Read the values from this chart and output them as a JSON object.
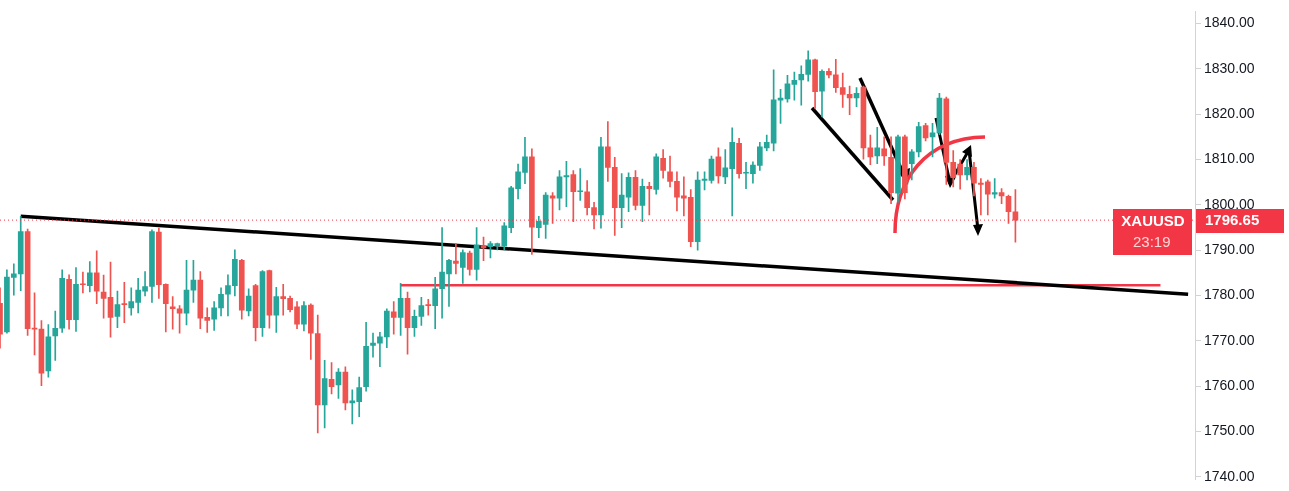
{
  "chart_data": {
    "type": "candlestick",
    "categories": [
      null,
      null,
      null,
      null,
      null,
      null,
      null,
      null,
      null,
      null,
      null,
      null,
      null,
      null,
      null,
      null,
      null,
      null,
      null,
      null,
      null,
      null,
      null,
      null,
      null,
      null,
      null,
      null,
      null,
      null,
      null,
      null,
      null,
      null,
      null,
      null,
      null,
      null,
      null,
      null,
      null,
      null,
      null,
      null,
      null,
      null,
      null,
      null,
      null,
      null,
      null,
      null,
      null,
      null,
      null,
      null,
      null,
      null,
      null,
      null,
      null,
      null,
      null,
      null,
      null,
      null,
      null,
      null,
      null,
      null,
      null,
      null,
      null,
      null,
      null,
      null,
      null,
      null,
      null,
      null,
      null,
      null,
      null,
      null,
      null,
      null,
      null,
      null,
      null,
      null,
      null,
      null,
      null,
      null,
      null,
      null,
      null,
      null,
      null,
      null,
      null,
      null,
      null,
      null,
      null,
      null,
      null,
      null,
      null,
      null,
      null,
      null,
      null,
      null,
      null,
      null,
      null,
      null,
      null,
      null,
      null,
      null,
      null,
      null,
      null,
      null,
      null,
      null,
      null,
      null,
      null,
      null,
      null,
      null,
      null,
      null,
      null,
      null,
      null,
      null,
      null,
      null,
      null,
      null,
      null,
      null,
      null,
      null,
      null,
      null,
      null,
      null,
      null,
      null,
      null,
      null,
      null,
      null,
      null,
      null,
      null,
      null,
      null,
      null,
      null,
      null,
      null,
      null,
      null,
      null,
      null,
      null,
      null,
      null
    ],
    "ohlc": [
      [
        1778.3,
        1781.7,
        1768.4,
        1771.5
      ],
      [
        1772.0,
        1785.7,
        1771.7,
        1784.1
      ],
      [
        1784.0,
        1787.0,
        1780.1,
        1784.8
      ],
      [
        1784.8,
        1797.5,
        1781.1,
        1794.1
      ],
      [
        1794.1,
        1794.7,
        1771.2,
        1772.7
      ],
      [
        1772.7,
        1780.6,
        1766.9,
        1772.6
      ],
      [
        1772.6,
        1774.5,
        1760.1,
        1762.9
      ],
      [
        1763.4,
        1773.6,
        1762.0,
        1770.9
      ],
      [
        1771.1,
        1776.6,
        1765.7,
        1772.8
      ],
      [
        1772.8,
        1785.7,
        1771.9,
        1783.8
      ],
      [
        1783.6,
        1784.6,
        1772.6,
        1774.7
      ],
      [
        1774.7,
        1786.2,
        1772.1,
        1782.5
      ],
      [
        1782.5,
        1785.2,
        1780.6,
        1782.4
      ],
      [
        1782.2,
        1787.5,
        1780.8,
        1785.0
      ],
      [
        1785.0,
        1789.9,
        1778.2,
        1781.0
      ],
      [
        1780.8,
        1784.5,
        1775.0,
        1779.4
      ],
      [
        1779.6,
        1787.4,
        1770.8,
        1775.2
      ],
      [
        1775.4,
        1781.0,
        1772.9,
        1778.0
      ],
      [
        1778.1,
        1782.9,
        1774.0,
        1778.0
      ],
      [
        1777.3,
        1781.7,
        1775.7,
        1778.7
      ],
      [
        1778.5,
        1783.8,
        1776.2,
        1781.2
      ],
      [
        1781.0,
        1785.3,
        1779.9,
        1782.0
      ],
      [
        1782.0,
        1794.5,
        1778.5,
        1794.1
      ],
      [
        1794.0,
        1794.9,
        1779.4,
        1782.4
      ],
      [
        1782.5,
        1782.6,
        1772.0,
        1778.2
      ],
      [
        1777.5,
        1779.8,
        1772.6,
        1777.1
      ],
      [
        1777.1,
        1777.8,
        1771.7,
        1776.1
      ],
      [
        1776.1,
        1787.8,
        1773.5,
        1781.2
      ],
      [
        1781.2,
        1787.8,
        1778.5,
        1783.4
      ],
      [
        1783.4,
        1785.3,
        1772.7,
        1775.0
      ],
      [
        1775.2,
        1777.3,
        1771.9,
        1774.5
      ],
      [
        1774.8,
        1778.7,
        1772.3,
        1777.3
      ],
      [
        1777.3,
        1781.7,
        1775.5,
        1780.3
      ],
      [
        1780.3,
        1784.6,
        1775.5,
        1782.2
      ],
      [
        1782.2,
        1790.1,
        1779.9,
        1788.0
      ],
      [
        1787.8,
        1788.0,
        1774.8,
        1776.8
      ],
      [
        1776.6,
        1781.5,
        1775.5,
        1779.9
      ],
      [
        1782.2,
        1782.5,
        1770.0,
        1772.9
      ],
      [
        1772.9,
        1785.5,
        1771.0,
        1785.3
      ],
      [
        1785.5,
        1785.6,
        1772.8,
        1775.7
      ],
      [
        1775.7,
        1781.8,
        1771.9,
        1779.8
      ],
      [
        1779.8,
        1782.5,
        1775.7,
        1779.3
      ],
      [
        1779.4,
        1779.9,
        1776.4,
        1776.9
      ],
      [
        1777.5,
        1778.7,
        1772.7,
        1773.7
      ],
      [
        1773.7,
        1778.7,
        1772.2,
        1777.8
      ],
      [
        1777.9,
        1778.2,
        1765.9,
        1771.7
      ],
      [
        1771.6,
        1775.7,
        1749.7,
        1755.9
      ],
      [
        1755.9,
        1765.7,
        1750.8,
        1761.7
      ],
      [
        1761.5,
        1765.2,
        1758.3,
        1759.9
      ],
      [
        1760.3,
        1763.9,
        1757.3,
        1763.1
      ],
      [
        1763.1,
        1764.3,
        1754.8,
        1756.3
      ],
      [
        1756.3,
        1759.2,
        1751.7,
        1756.8
      ],
      [
        1756.6,
        1762.0,
        1753.3,
        1759.7
      ],
      [
        1759.9,
        1774.1,
        1758.9,
        1768.8
      ],
      [
        1769.0,
        1771.7,
        1766.4,
        1769.5
      ],
      [
        1769.5,
        1771.9,
        1764.3,
        1770.9
      ],
      [
        1770.9,
        1777.1,
        1768.5,
        1776.6
      ],
      [
        1776.4,
        1778.7,
        1771.5,
        1775.2
      ],
      [
        1775.2,
        1782.7,
        1771.2,
        1779.4
      ],
      [
        1779.4,
        1780.8,
        1767.1,
        1772.9
      ],
      [
        1772.9,
        1776.8,
        1771.0,
        1775.4
      ],
      [
        1775.4,
        1779.6,
        1773.4,
        1777.8
      ],
      [
        1778.0,
        1779.2,
        1775.7,
        1777.8
      ],
      [
        1777.8,
        1784.0,
        1772.7,
        1781.5
      ],
      [
        1781.5,
        1795.0,
        1775.0,
        1785.2
      ],
      [
        1784.8,
        1788.0,
        1777.6,
        1787.8
      ],
      [
        1787.6,
        1791.5,
        1784.8,
        1787.1
      ],
      [
        1786.2,
        1790.1,
        1782.7,
        1789.5
      ],
      [
        1789.4,
        1789.8,
        1784.5,
        1785.8
      ],
      [
        1785.8,
        1795.0,
        1783.4,
        1791.2
      ],
      [
        1791.0,
        1792.9,
        1787.7,
        1790.5
      ],
      [
        1790.8,
        1791.9,
        1788.3,
        1791.5
      ],
      [
        1791.0,
        1791.6,
        1790.1,
        1791.5
      ],
      [
        1790.9,
        1796.1,
        1790.1,
        1795.4
      ],
      [
        1795.0,
        1804.1,
        1793.9,
        1803.8
      ],
      [
        1803.6,
        1809.0,
        1801.3,
        1807.3
      ],
      [
        1807.2,
        1814.9,
        1804.7,
        1810.6
      ],
      [
        1810.6,
        1812.4,
        1789.1,
        1795.1
      ],
      [
        1795.0,
        1797.5,
        1792.8,
        1796.4
      ],
      [
        1795.7,
        1802.7,
        1792.6,
        1802.2
      ],
      [
        1802.0,
        1802.7,
        1795.9,
        1801.5
      ],
      [
        1801.5,
        1807.6,
        1798.9,
        1806.2
      ],
      [
        1806.2,
        1809.6,
        1799.6,
        1806.5
      ],
      [
        1806.7,
        1807.6,
        1796.3,
        1802.9
      ],
      [
        1802.9,
        1808.0,
        1801.0,
        1803.0
      ],
      [
        1802.9,
        1805.4,
        1797.8,
        1799.4
      ],
      [
        1799.4,
        1800.6,
        1794.7,
        1797.8
      ],
      [
        1797.8,
        1814.9,
        1794.9,
        1812.8
      ],
      [
        1812.8,
        1818.4,
        1805.2,
        1808.3
      ],
      [
        1808.3,
        1810.5,
        1793.3,
        1799.4
      ],
      [
        1799.4,
        1806.9,
        1795.0,
        1802.2
      ],
      [
        1801.7,
        1807.1,
        1798.5,
        1806.1
      ],
      [
        1806.1,
        1807.6,
        1798.9,
        1799.9
      ],
      [
        1799.9,
        1805.7,
        1796.3,
        1804.1
      ],
      [
        1804.1,
        1805.0,
        1797.8,
        1803.6
      ],
      [
        1803.4,
        1811.3,
        1802.4,
        1810.6
      ],
      [
        1810.3,
        1812.2,
        1805.9,
        1807.6
      ],
      [
        1807.3,
        1810.8,
        1804.0,
        1805.2
      ],
      [
        1805.2,
        1807.3,
        1798.7,
        1801.7
      ],
      [
        1802.0,
        1806.2,
        1797.6,
        1801.5
      ],
      [
        1801.7,
        1803.4,
        1790.8,
        1791.9
      ],
      [
        1791.9,
        1807.3,
        1790.0,
        1805.5
      ],
      [
        1805.4,
        1807.3,
        1803.3,
        1805.7
      ],
      [
        1805.4,
        1810.8,
        1804.8,
        1810.1
      ],
      [
        1810.6,
        1812.6,
        1804.8,
        1806.4
      ],
      [
        1806.2,
        1812.2,
        1804.7,
        1808.2
      ],
      [
        1808.0,
        1817.0,
        1797.6,
        1813.8
      ],
      [
        1813.6,
        1814.7,
        1805.9,
        1806.9
      ],
      [
        1807.0,
        1809.4,
        1803.6,
        1807.1
      ],
      [
        1806.9,
        1809.5,
        1804.8,
        1808.8
      ],
      [
        1808.7,
        1813.8,
        1807.6,
        1812.8
      ],
      [
        1812.6,
        1815.4,
        1812.0,
        1813.8
      ],
      [
        1813.6,
        1829.8,
        1811.9,
        1823.2
      ],
      [
        1823.1,
        1825.5,
        1818.0,
        1823.6
      ],
      [
        1823.4,
        1828.6,
        1822.7,
        1826.7
      ],
      [
        1826.6,
        1829.3,
        1823.1,
        1827.5
      ],
      [
        1827.6,
        1830.7,
        1822.0,
        1828.8
      ],
      [
        1828.8,
        1834.0,
        1827.3,
        1832.0
      ],
      [
        1832.0,
        1832.2,
        1821.3,
        1825.0
      ],
      [
        1825.1,
        1829.8,
        1819.4,
        1829.5
      ],
      [
        1829.5,
        1830.1,
        1828.0,
        1828.7
      ],
      [
        1828.7,
        1832.1,
        1824.8,
        1825.9
      ],
      [
        1825.9,
        1829.1,
        1821.5,
        1824.4
      ],
      [
        1824.4,
        1826.2,
        1819.9,
        1823.6
      ],
      [
        1823.6,
        1825.9,
        1821.7,
        1824.6
      ],
      [
        1826.0,
        1826.2,
        1810.1,
        1812.6
      ],
      [
        1812.6,
        1815.4,
        1808.9,
        1810.6
      ],
      [
        1810.8,
        1817.1,
        1809.1,
        1812.6
      ],
      [
        1812.4,
        1815.0,
        1808.7,
        1810.8
      ],
      [
        1810.5,
        1815.0,
        1800.3,
        1802.7
      ],
      [
        1802.6,
        1815.4,
        1800.6,
        1815.0
      ],
      [
        1815.0,
        1815.4,
        1801.3,
        1802.7
      ],
      [
        1809.1,
        1812.2,
        1805.5,
        1811.7
      ],
      [
        1811.7,
        1818.2,
        1810.6,
        1817.3
      ],
      [
        1817.5,
        1818.0,
        1814.1,
        1814.8
      ],
      [
        1815.0,
        1818.0,
        1810.6,
        1815.9
      ],
      [
        1815.9,
        1824.6,
        1815.5,
        1823.6
      ],
      [
        1823.4,
        1823.8,
        1804.5,
        1809.4
      ],
      [
        1809.4,
        1812.0,
        1804.0,
        1806.0
      ],
      [
        1809.0,
        1810.0,
        1803.5,
        1806.6
      ],
      [
        1806.6,
        1810.0,
        1805.5,
        1808.3
      ],
      [
        1808.3,
        1809.4,
        1802.0,
        1804.8
      ],
      [
        1804.8,
        1805.8,
        1797.8,
        1804.5
      ],
      [
        1805.1,
        1805.5,
        1797.8,
        1802.4
      ],
      [
        1802.4,
        1805.8,
        1801.5,
        1802.7
      ],
      [
        1802.7,
        1803.6,
        1800.3,
        1802.0
      ],
      [
        1801.9,
        1802.2,
        1795.9,
        1798.5
      ],
      [
        1798.5,
        1803.4,
        1791.8,
        1796.65
      ],
      null,
      null,
      null,
      null,
      null,
      null,
      null,
      null,
      null,
      null,
      null,
      null,
      null,
      null,
      null,
      null,
      null,
      null,
      null,
      null,
      null,
      null,
      null,
      null,
      null,
      null
    ],
    "series": [
      {
        "type": "line",
        "color": "#000000",
        "values": [
          null,
          null,
          null,
          1797.5,
          null,
          null,
          null,
          null,
          null,
          null,
          null,
          null,
          null,
          null,
          null,
          null,
          null,
          null,
          null,
          null,
          null,
          null,
          null,
          null,
          null,
          null,
          null,
          null,
          null,
          null,
          null,
          null,
          null,
          null,
          null,
          null,
          null,
          null,
          null,
          null,
          null,
          null,
          null,
          null,
          null,
          null,
          null,
          null,
          null,
          null,
          null,
          null,
          null,
          null,
          null,
          null,
          null,
          null,
          null,
          null,
          null,
          null,
          null,
          null,
          null,
          null,
          null,
          null,
          null,
          null,
          null,
          null,
          null,
          null,
          null,
          null,
          null,
          null,
          null,
          null,
          null,
          null,
          null,
          null,
          null,
          null,
          null,
          null,
          null,
          null,
          null,
          null,
          null,
          null,
          null,
          null,
          null,
          null,
          null,
          null,
          null,
          null,
          null,
          null,
          null,
          null,
          null,
          null,
          null,
          null,
          null,
          null,
          null,
          null,
          null,
          null,
          null,
          null,
          null,
          null,
          null,
          null,
          null,
          null,
          null,
          null,
          null,
          null,
          null,
          null,
          null,
          null,
          null,
          null,
          null,
          null,
          null,
          null,
          null,
          null,
          null,
          null,
          null,
          null,
          null,
          null,
          null,
          null,
          null,
          null,
          null,
          null,
          null,
          null,
          null,
          null,
          null,
          null,
          null,
          null,
          null,
          null,
          null,
          null,
          null,
          null,
          null,
          null,
          null,
          null,
          null,
          null,
          1780.3,
          null
        ]
      },
      {
        "type": "line",
        "color": "#f23645",
        "values": [
          null,
          null,
          null,
          null,
          null,
          null,
          null,
          null,
          null,
          null,
          null,
          null,
          null,
          null,
          null,
          null,
          null,
          null,
          null,
          null,
          null,
          null,
          null,
          null,
          null,
          null,
          null,
          null,
          null,
          null,
          null,
          null,
          null,
          null,
          null,
          null,
          null,
          null,
          null,
          null,
          null,
          null,
          null,
          null,
          null,
          null,
          null,
          null,
          null,
          null,
          null,
          null,
          null,
          null,
          null,
          null,
          null,
          null,
          1782.3,
          null,
          null,
          null,
          null,
          null,
          null,
          null,
          null,
          null,
          null,
          null,
          null,
          null,
          null,
          null,
          null,
          null,
          null,
          null,
          null,
          null,
          null,
          null,
          null,
          null,
          null,
          null,
          null,
          null,
          null,
          null,
          null,
          null,
          null,
          null,
          null,
          null,
          null,
          null,
          null,
          null,
          null,
          null,
          null,
          null,
          null,
          null,
          null,
          null,
          null,
          null,
          null,
          null,
          null,
          null,
          null,
          null,
          null,
          null,
          null,
          null,
          null,
          null,
          null,
          null,
          null,
          null,
          null,
          null,
          null,
          null,
          null,
          null,
          null,
          null,
          null,
          null,
          null,
          null,
          null,
          null,
          null,
          null,
          null,
          null,
          null,
          null,
          null,
          null,
          null,
          null,
          null,
          null,
          null,
          null,
          null,
          null,
          null,
          null,
          null,
          null,
          null,
          null,
          null,
          null,
          null,
          null,
          null,
          null,
          1782.3,
          null,
          null,
          null,
          null,
          null
        ]
      }
    ],
    "ylim": [
      1739.4,
      1842.7
    ],
    "yticks": [
      {
        "value": 1740,
        "label": "1740.00"
      },
      {
        "value": 1750,
        "label": "1750.00"
      },
      {
        "value": 1760,
        "label": "1760.00"
      },
      {
        "value": 1770,
        "label": "1770.00"
      },
      {
        "value": 1780,
        "label": "1780.00"
      },
      {
        "value": 1790,
        "label": "1790.00"
      },
      {
        "value": 1800,
        "label": "1800.00"
      },
      {
        "value": 1810,
        "label": "1810.00"
      },
      {
        "value": 1820,
        "label": "1820.00"
      },
      {
        "value": 1830,
        "label": "1830.00"
      },
      {
        "value": 1840,
        "label": "1840.00"
      }
    ],
    "tick_labels": "y",
    "ref_lines": [
      {
        "axis": "y",
        "value": 1796.65,
        "label": "1796.65",
        "color": "#f23645",
        "line_style": "dotted"
      }
    ],
    "annotations": [
      "XAUUSD",
      "23:19"
    ]
  }
}
